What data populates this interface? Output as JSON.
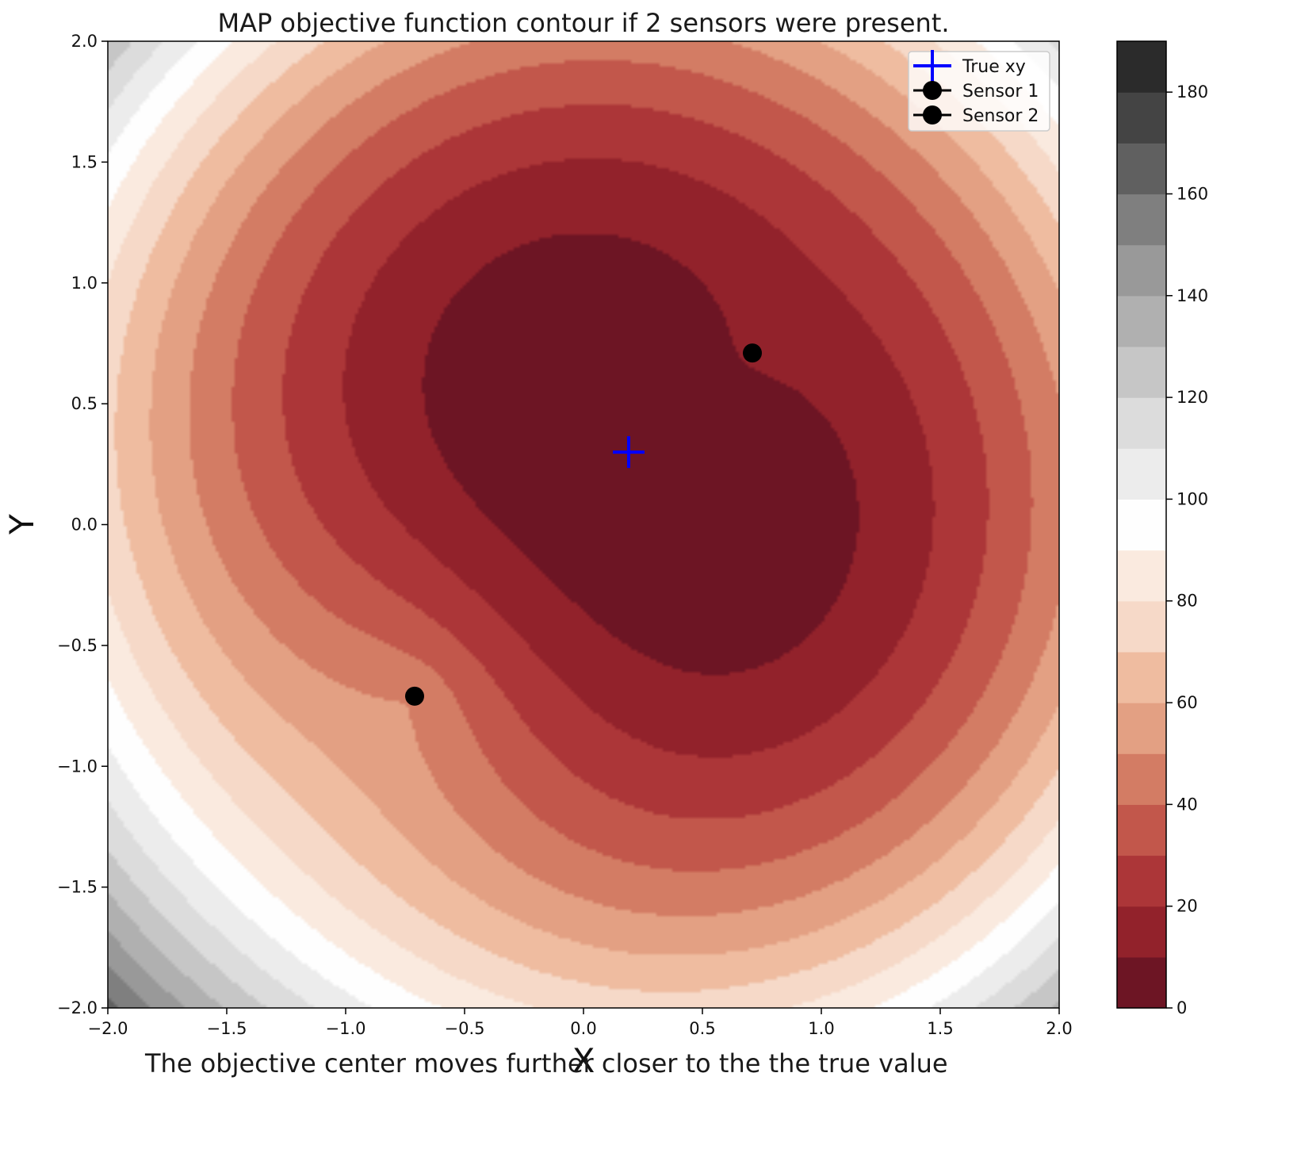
{
  "chart_data": {
    "type": "contour",
    "title": "MAP objective function contour if 2 sensors were present.",
    "xlabel": "X",
    "ylabel": "Y",
    "xlim": [
      -2.0,
      2.0
    ],
    "ylim": [
      -2.0,
      2.0
    ],
    "xticks": [
      -2.0,
      -1.5,
      -1.0,
      -0.5,
      0.0,
      0.5,
      1.0,
      1.5,
      2.0
    ],
    "yticks": [
      -2.0,
      -1.5,
      -1.0,
      -0.5,
      0.0,
      0.5,
      1.0,
      1.5,
      2.0
    ],
    "xtick_labels": [
      "−2.0",
      "−1.5",
      "−1.0",
      "−0.5",
      "0.0",
      "0.5",
      "1.0",
      "1.5",
      "2.0"
    ],
    "ytick_labels": [
      "−2.0",
      "−1.5",
      "−1.0",
      "−0.5",
      "0.0",
      "0.5",
      "1.0",
      "1.5",
      "2.0"
    ],
    "colorbar": {
      "levels": [
        0,
        10,
        20,
        30,
        40,
        50,
        60,
        70,
        80,
        90,
        100,
        110,
        120,
        130,
        140,
        150,
        160,
        170,
        180,
        190
      ],
      "colors": [
        "#6d1524",
        "#92222b",
        "#ac3638",
        "#c2574b",
        "#d37c64",
        "#e3a083",
        "#efbca0",
        "#f6d9c8",
        "#faeadf",
        "#fefefe",
        "#ececec",
        "#dcdcdc",
        "#c6c6c6",
        "#b0b0b0",
        "#999999",
        "#7f7f7f",
        "#606060",
        "#444444",
        "#2b2b2b"
      ],
      "ticks": [
        0,
        20,
        40,
        60,
        80,
        100,
        120,
        140,
        160,
        180
      ],
      "tick_labels": [
        "0",
        "20",
        "40",
        "60",
        "80",
        "100",
        "120",
        "140",
        "160",
        "180"
      ]
    },
    "series": [
      {
        "name": "True xy",
        "marker": "+",
        "color": "#0000ff",
        "x": [
          0.19
        ],
        "y": [
          0.3
        ]
      },
      {
        "name": "Sensor 1",
        "marker": "o",
        "color": "#000000",
        "x": [
          0.71
        ],
        "y": [
          0.71
        ]
      },
      {
        "name": "Sensor 2",
        "marker": "o",
        "color": "#000000",
        "x": [
          -0.71
        ],
        "y": [
          -0.71
        ]
      }
    ],
    "legend_position": "upper right"
  },
  "caption": "The objective center moves further closer to the the true value"
}
